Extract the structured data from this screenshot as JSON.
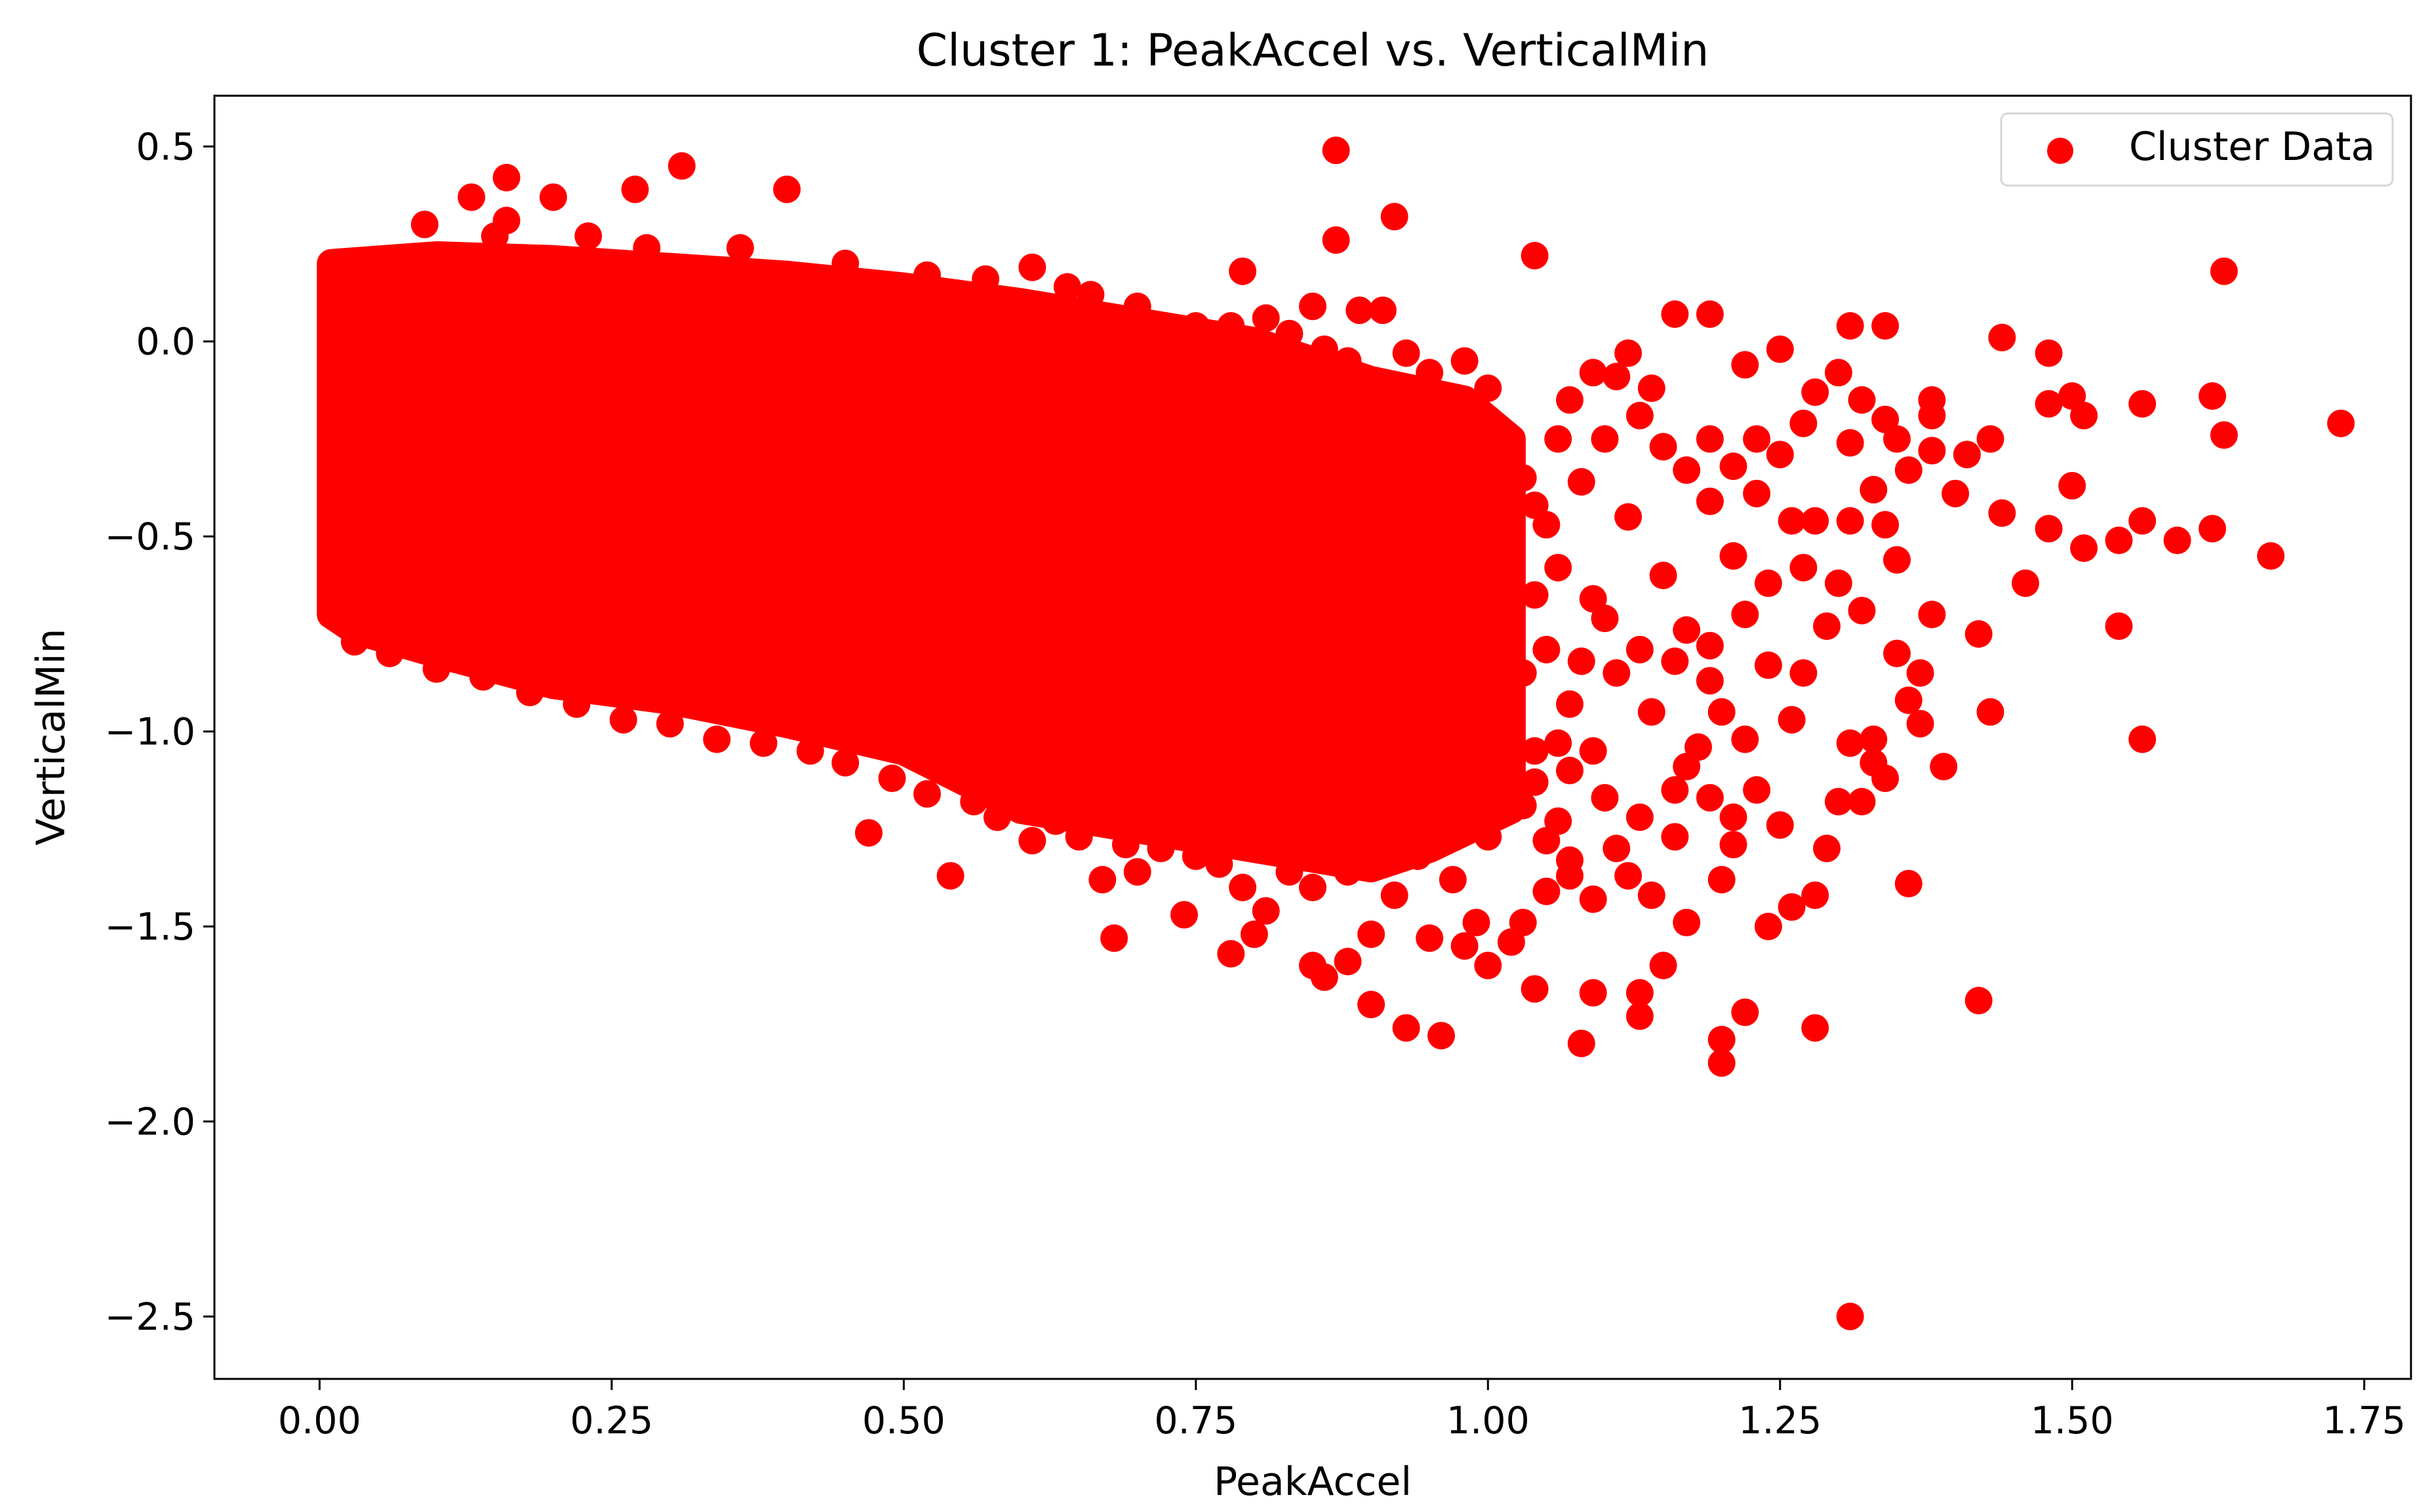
{
  "chart_data": {
    "type": "scatter",
    "title": "Cluster 1: PeakAccel vs. VerticalMin",
    "xlabel": "PeakAccel",
    "ylabel": "VerticalMin",
    "xlim": [
      -0.09,
      1.79
    ],
    "ylim": [
      -2.66,
      0.63
    ],
    "xticks": [
      0.0,
      0.25,
      0.5,
      0.75,
      1.0,
      1.25,
      1.5,
      1.75
    ],
    "xtick_labels": [
      "0.00",
      "0.25",
      "0.50",
      "0.75",
      "1.00",
      "1.25",
      "1.50",
      "1.75"
    ],
    "yticks": [
      0.5,
      0.0,
      -0.5,
      -1.0,
      -1.5,
      -2.0,
      -2.5
    ],
    "ytick_labels": [
      "0.5",
      "0.0",
      "−0.5",
      "−1.0",
      "−1.5",
      "−2.0",
      "−2.5"
    ],
    "grid": false,
    "legend": {
      "position": "top-right",
      "entries": [
        "Cluster Data"
      ]
    },
    "series": [
      {
        "name": "Cluster Data",
        "color": "#ff0000",
        "marker": "circle",
        "dense_region": {
          "polygon": [
            [
              0.01,
              0.2
            ],
            [
              0.1,
              0.22
            ],
            [
              0.2,
              0.21
            ],
            [
              0.3,
              0.19
            ],
            [
              0.4,
              0.17
            ],
            [
              0.5,
              0.14
            ],
            [
              0.6,
              0.1
            ],
            [
              0.7,
              0.05
            ],
            [
              0.8,
              0.0
            ],
            [
              0.9,
              -0.1
            ],
            [
              0.98,
              -0.15
            ],
            [
              1.02,
              -0.25
            ],
            [
              1.02,
              -1.2
            ],
            [
              0.95,
              -1.3
            ],
            [
              0.9,
              -1.35
            ],
            [
              0.8,
              -1.3
            ],
            [
              0.7,
              -1.25
            ],
            [
              0.6,
              -1.2
            ],
            [
              0.5,
              -1.05
            ],
            [
              0.4,
              -0.98
            ],
            [
              0.3,
              -0.92
            ],
            [
              0.2,
              -0.88
            ],
            [
              0.1,
              -0.8
            ],
            [
              0.03,
              -0.74
            ],
            [
              0.01,
              -0.7
            ]
          ]
        },
        "points": [
          [
            0.01,
            -0.19
          ],
          [
            0.01,
            -0.33
          ],
          [
            0.01,
            -0.69
          ],
          [
            0.09,
            0.3
          ],
          [
            0.13,
            0.37
          ],
          [
            0.16,
            0.42
          ],
          [
            0.16,
            0.31
          ],
          [
            0.2,
            0.37
          ],
          [
            0.27,
            0.39
          ],
          [
            0.31,
            0.45
          ],
          [
            0.4,
            0.39
          ],
          [
            0.15,
            0.27
          ],
          [
            0.47,
            -1.26
          ],
          [
            0.54,
            -1.37
          ],
          [
            0.61,
            -1.28
          ],
          [
            0.68,
            -1.53
          ],
          [
            0.67,
            -1.38
          ],
          [
            0.7,
            -1.36
          ],
          [
            0.74,
            -1.47
          ],
          [
            0.78,
            -1.57
          ],
          [
            0.8,
            -1.52
          ],
          [
            0.85,
            -1.6
          ],
          [
            0.86,
            -1.63
          ],
          [
            0.88,
            -1.59
          ],
          [
            0.9,
            -1.7
          ],
          [
            0.93,
            -1.76
          ],
          [
            0.96,
            -1.78
          ],
          [
            0.95,
            -1.53
          ],
          [
            0.98,
            -1.55
          ],
          [
            1.0,
            -1.6
          ],
          [
            1.04,
            -1.66
          ],
          [
            1.08,
            -1.8
          ],
          [
            1.09,
            -1.67
          ],
          [
            1.13,
            -1.73
          ],
          [
            1.13,
            -1.67
          ],
          [
            1.15,
            -1.6
          ],
          [
            1.17,
            -1.49
          ],
          [
            1.2,
            -1.79
          ],
          [
            1.2,
            -1.85
          ],
          [
            1.22,
            -1.72
          ],
          [
            1.24,
            -1.5
          ],
          [
            1.26,
            -1.45
          ],
          [
            1.28,
            -1.42
          ],
          [
            1.28,
            -1.76
          ],
          [
            1.31,
            -2.5
          ],
          [
            1.32,
            -1.18
          ],
          [
            1.31,
            -1.03
          ],
          [
            1.34,
            -1.12
          ],
          [
            1.33,
            -1.02
          ],
          [
            1.36,
            -1.39
          ],
          [
            1.36,
            -0.92
          ],
          [
            1.39,
            -1.09
          ],
          [
            1.42,
            -1.69
          ],
          [
            1.43,
            -0.95
          ],
          [
            1.42,
            -0.75
          ],
          [
            1.37,
            -0.85
          ],
          [
            1.38,
            -0.7
          ],
          [
            1.35,
            -0.56
          ],
          [
            1.33,
            -0.38
          ],
          [
            1.31,
            -0.26
          ],
          [
            1.31,
            0.04
          ],
          [
            1.34,
            0.04
          ],
          [
            1.44,
            0.01
          ],
          [
            1.48,
            -0.03
          ],
          [
            1.48,
            -0.16
          ],
          [
            1.5,
            -0.14
          ],
          [
            1.51,
            -0.19
          ],
          [
            1.56,
            -0.16
          ],
          [
            1.62,
            -0.14
          ],
          [
            1.63,
            -0.24
          ],
          [
            1.63,
            0.18
          ],
          [
            1.73,
            -0.21
          ],
          [
            1.67,
            -0.55
          ],
          [
            1.62,
            -0.48
          ],
          [
            1.59,
            -0.51
          ],
          [
            1.56,
            -0.46
          ],
          [
            1.54,
            -0.51
          ],
          [
            1.51,
            -0.53
          ],
          [
            1.5,
            -0.37
          ],
          [
            1.48,
            -0.48
          ],
          [
            1.54,
            -0.73
          ],
          [
            1.56,
            -1.02
          ],
          [
            1.46,
            -0.62
          ],
          [
            1.44,
            -0.44
          ],
          [
            1.43,
            -0.25
          ],
          [
            1.41,
            -0.29
          ],
          [
            1.4,
            -0.39
          ],
          [
            1.38,
            -0.28
          ],
          [
            1.38,
            -0.19
          ],
          [
            1.38,
            -0.15
          ],
          [
            1.35,
            -0.25
          ],
          [
            1.31,
            -0.46
          ],
          [
            1.3,
            -0.62
          ],
          [
            1.27,
            -0.58
          ],
          [
            1.26,
            -0.46
          ],
          [
            1.25,
            -0.02
          ],
          [
            1.22,
            -0.06
          ],
          [
            1.19,
            0.07
          ],
          [
            1.16,
            0.07
          ],
          [
            1.12,
            -0.03
          ],
          [
            1.23,
            -0.25
          ],
          [
            1.19,
            -0.41
          ],
          [
            1.21,
            -0.55
          ],
          [
            1.24,
            -0.83
          ],
          [
            1.2,
            -0.95
          ],
          [
            1.17,
            -1.09
          ],
          [
            1.2,
            -1.38
          ],
          [
            1.21,
            -1.29
          ],
          [
            1.16,
            -1.27
          ],
          [
            1.14,
            -1.42
          ],
          [
            1.12,
            -1.37
          ],
          [
            1.07,
            -1.33
          ],
          [
            1.06,
            -1.23
          ],
          [
            1.05,
            -1.41
          ],
          [
            1.03,
            -1.49
          ],
          [
            1.02,
            -1.54
          ],
          [
            0.99,
            -1.49
          ],
          [
            0.97,
            -1.38
          ],
          [
            0.92,
            -1.42
          ],
          [
            0.9,
            -1.52
          ],
          [
            0.87,
            0.49
          ],
          [
            0.87,
            0.26
          ],
          [
            0.92,
            0.32
          ],
          [
            1.04,
            0.22
          ],
          [
            0.79,
            0.18
          ],
          [
            0.61,
            0.19
          ],
          [
            0.66,
            0.12
          ],
          [
            0.81,
            0.06
          ],
          [
            0.85,
            0.09
          ],
          [
            0.89,
            0.08
          ],
          [
            0.91,
            0.08
          ],
          [
            0.98,
            -0.05
          ],
          [
            1.0,
            -0.12
          ],
          [
            1.1,
            -0.25
          ],
          [
            1.14,
            -0.12
          ],
          [
            1.12,
            -0.45
          ],
          [
            1.09,
            -0.66
          ],
          [
            1.11,
            -0.85
          ],
          [
            1.14,
            -0.95
          ],
          [
            1.09,
            -1.05
          ],
          [
            1.07,
            -0.93
          ],
          [
            1.05,
            -0.79
          ],
          [
            1.06,
            -0.58
          ],
          [
            1.08,
            -0.36
          ],
          [
            1.05,
            -0.47
          ],
          [
            1.15,
            -0.6
          ],
          [
            1.17,
            -0.74
          ],
          [
            1.19,
            -0.87
          ],
          [
            1.18,
            -1.04
          ],
          [
            1.22,
            -1.02
          ],
          [
            1.26,
            -0.97
          ],
          [
            1.27,
            -0.85
          ],
          [
            1.29,
            -0.73
          ],
          [
            1.32,
            -0.69
          ],
          [
            1.35,
            -0.8
          ],
          [
            1.37,
            -0.98
          ],
          [
            1.33,
            -1.08
          ],
          [
            1.3,
            -1.18
          ],
          [
            1.29,
            -1.3
          ],
          [
            1.25,
            -1.24
          ],
          [
            1.23,
            -1.15
          ],
          [
            1.21,
            -1.22
          ],
          [
            1.19,
            -1.17
          ],
          [
            1.16,
            -1.15
          ],
          [
            1.13,
            -1.22
          ],
          [
            1.1,
            -1.17
          ],
          [
            1.07,
            -1.1
          ],
          [
            1.04,
            -1.05
          ],
          [
            1.03,
            -0.85
          ],
          [
            1.04,
            -0.65
          ],
          [
            1.06,
            -0.25
          ],
          [
            1.07,
            -0.15
          ],
          [
            1.09,
            -0.08
          ],
          [
            1.11,
            -0.09
          ],
          [
            1.13,
            -0.19
          ],
          [
            1.15,
            -0.27
          ],
          [
            1.17,
            -0.33
          ],
          [
            1.19,
            -0.25
          ],
          [
            1.21,
            -0.32
          ],
          [
            1.23,
            -0.39
          ],
          [
            1.25,
            -0.29
          ],
          [
            1.27,
            -0.21
          ],
          [
            1.28,
            -0.13
          ],
          [
            1.3,
            -0.08
          ],
          [
            1.32,
            -0.15
          ],
          [
            1.34,
            -0.2
          ],
          [
            1.36,
            -0.33
          ],
          [
            1.34,
            -0.47
          ],
          [
            1.28,
            -0.46
          ],
          [
            1.24,
            -0.62
          ],
          [
            1.22,
            -0.7
          ],
          [
            1.19,
            -0.78
          ],
          [
            1.16,
            -0.82
          ],
          [
            1.13,
            -0.79
          ],
          [
            1.1,
            -0.71
          ],
          [
            1.08,
            -0.82
          ],
          [
            1.06,
            -1.03
          ],
          [
            1.04,
            -1.13
          ],
          [
            1.11,
            -1.3
          ],
          [
            1.09,
            -1.43
          ],
          [
            1.07,
            -1.37
          ],
          [
            1.05,
            -1.28
          ],
          [
            1.03,
            -1.19
          ],
          [
            1.0,
            -1.27
          ],
          [
            0.98,
            -1.24
          ],
          [
            0.96,
            -1.19
          ],
          [
            0.94,
            -1.32
          ],
          [
            0.92,
            -1.26
          ],
          [
            0.88,
            -1.36
          ],
          [
            0.85,
            -1.4
          ],
          [
            0.83,
            -1.36
          ],
          [
            0.81,
            -1.46
          ],
          [
            0.79,
            -1.4
          ],
          [
            0.77,
            -1.34
          ],
          [
            0.75,
            -1.32
          ],
          [
            0.72,
            -1.3
          ],
          [
            0.69,
            -1.29
          ],
          [
            0.65,
            -1.27
          ],
          [
            0.63,
            -1.23
          ],
          [
            0.58,
            -1.22
          ],
          [
            0.56,
            -1.18
          ],
          [
            0.52,
            -1.16
          ],
          [
            0.49,
            -1.12
          ],
          [
            0.45,
            -1.08
          ],
          [
            0.42,
            -1.05
          ],
          [
            0.38,
            -1.03
          ],
          [
            0.34,
            -1.02
          ],
          [
            0.3,
            -0.98
          ],
          [
            0.26,
            -0.97
          ],
          [
            0.22,
            -0.93
          ],
          [
            0.18,
            -0.9
          ],
          [
            0.14,
            -0.86
          ],
          [
            0.1,
            -0.84
          ],
          [
            0.06,
            -0.8
          ],
          [
            0.03,
            -0.77
          ],
          [
            0.23,
            0.27
          ],
          [
            0.28,
            0.24
          ],
          [
            0.36,
            0.24
          ],
          [
            0.45,
            0.2
          ],
          [
            0.52,
            0.17
          ],
          [
            0.57,
            0.16
          ],
          [
            0.64,
            0.14
          ],
          [
            0.7,
            0.09
          ],
          [
            0.75,
            0.04
          ],
          [
            0.78,
            0.04
          ],
          [
            0.83,
            0.02
          ],
          [
            0.86,
            -0.02
          ],
          [
            0.88,
            -0.05
          ],
          [
            0.93,
            -0.03
          ],
          [
            0.95,
            -0.08
          ],
          [
            0.97,
            -0.18
          ],
          [
            0.99,
            -0.2
          ],
          [
            1.01,
            -0.28
          ],
          [
            1.03,
            -0.35
          ],
          [
            1.04,
            -0.42
          ]
        ]
      }
    ]
  }
}
